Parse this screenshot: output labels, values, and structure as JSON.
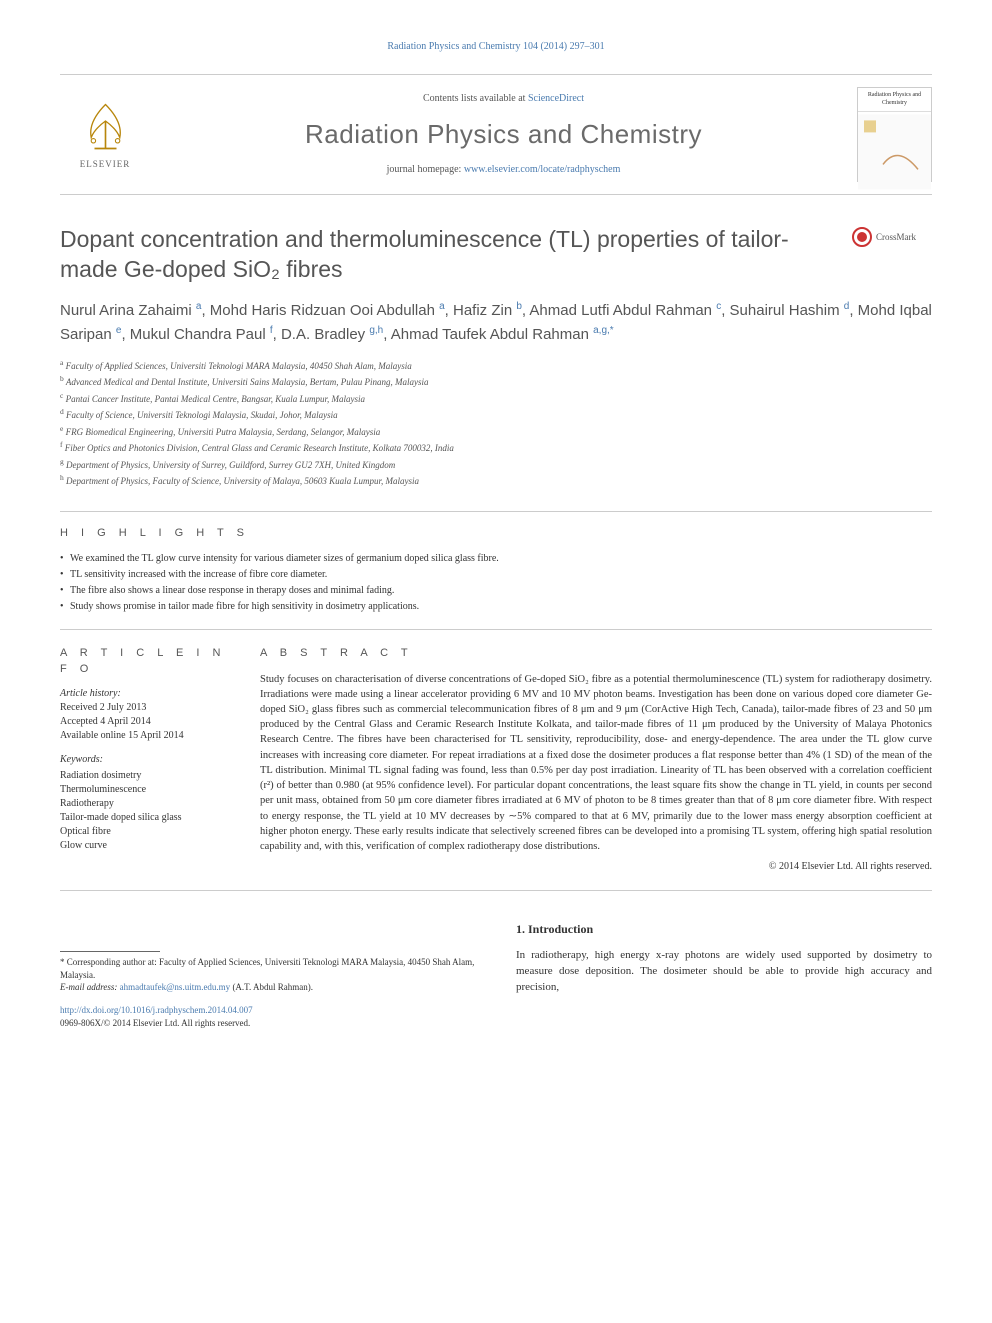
{
  "header": {
    "journal_link": "Radiation Physics and Chemistry 104 (2014) 297–301",
    "contents_prefix": "Contents lists available at ",
    "contents_link": "ScienceDirect",
    "journal_title": "Radiation Physics and Chemistry",
    "homepage_prefix": "journal homepage: ",
    "homepage_link": "www.elsevier.com/locate/radphyschem",
    "elsevier_label": "ELSEVIER",
    "cover_label": "Radiation Physics and Chemistry"
  },
  "crossmark": {
    "label": "CrossMark"
  },
  "article": {
    "title": "Dopant concentration and thermoluminescence (TL) properties of tailor-made Ge-doped SiO₂ fibres",
    "authors_html": "Nurul Arina Zahaimi <sup>a</sup>, Mohd Haris Ridzuan Ooi Abdullah <sup>a</sup>, Hafiz Zin <sup>b</sup>, Ahmad Lutfi Abdul Rahman <sup>c</sup>, Suhairul Hashim <sup>d</sup>, Mohd Iqbal Saripan <sup>e</sup>, Mukul Chandra Paul <sup>f</sup>, D.A. Bradley <sup>g,h</sup>, Ahmad Taufek Abdul Rahman <sup>a,g,*</sup>",
    "affiliations": [
      {
        "sup": "a",
        "text": "Faculty of Applied Sciences, Universiti Teknologi MARA Malaysia, 40450 Shah Alam, Malaysia"
      },
      {
        "sup": "b",
        "text": "Advanced Medical and Dental Institute, Universiti Sains Malaysia, Bertam, Pulau Pinang, Malaysia"
      },
      {
        "sup": "c",
        "text": "Pantai Cancer Institute, Pantai Medical Centre, Bangsar, Kuala Lumpur, Malaysia"
      },
      {
        "sup": "d",
        "text": "Faculty of Science, Universiti Teknologi Malaysia, Skudai, Johor, Malaysia"
      },
      {
        "sup": "e",
        "text": "FRG Biomedical Engineering, Universiti Putra Malaysia, Serdang, Selangor, Malaysia"
      },
      {
        "sup": "f",
        "text": "Fiber Optics and Photonics Division, Central Glass and Ceramic Research Institute, Kolkata 700032, India"
      },
      {
        "sup": "g",
        "text": "Department of Physics, University of Surrey, Guildford, Surrey GU2 7XH, United Kingdom"
      },
      {
        "sup": "h",
        "text": "Department of Physics, Faculty of Science, University of Malaya, 50603 Kuala Lumpur, Malaysia"
      }
    ]
  },
  "highlights": {
    "heading": "H I G H L I G H T S",
    "items": [
      "We examined the TL glow curve intensity for various diameter sizes of germanium doped silica glass fibre.",
      "TL sensitivity increased with the increase of fibre core diameter.",
      "The fibre also shows a linear dose response in therapy doses and minimal fading.",
      "Study shows promise in tailor made fibre for high sensitivity in dosimetry applications."
    ]
  },
  "article_info": {
    "heading": "A R T I C L E  I N F O",
    "history_label": "Article history:",
    "history": [
      "Received 2 July 2013",
      "Accepted 4 April 2014",
      "Available online 15 April 2014"
    ],
    "keywords_label": "Keywords:",
    "keywords": [
      "Radiation dosimetry",
      "Thermoluminescence",
      "Radiotherapy",
      "Tailor-made doped silica glass",
      "Optical fibre",
      "Glow curve"
    ]
  },
  "abstract": {
    "heading": "A B S T R A C T",
    "text": "Study focuses on characterisation of diverse concentrations of Ge-doped SiO₂ fibre as a potential thermoluminescence (TL) system for radiotherapy dosimetry. Irradiations were made using a linear accelerator providing 6 MV and 10 MV photon beams. Investigation has been done on various doped core diameter Ge-doped SiO₂ glass fibres such as commercial telecommunication fibres of 8 μm and 9 μm (CorActive High Tech, Canada), tailor-made fibres of 23 and 50 μm produced by the Central Glass and Ceramic Research Institute Kolkata, and tailor-made fibres of 11 μm produced by the University of Malaya Photonics Research Centre. The fibres have been characterised for TL sensitivity, reproducibility, dose- and energy-dependence. The area under the TL glow curve increases with increasing core diameter. For repeat irradiations at a fixed dose the dosimeter produces a flat response better than 4% (1 SD) of the mean of the TL distribution. Minimal TL signal fading was found, less than 0.5% per day post irradiation. Linearity of TL has been observed with a correlation coefficient (r²) of better than 0.980 (at 95% confidence level). For particular dopant concentrations, the least square fits show the change in TL yield, in counts per second per unit mass, obtained from 50 μm core diameter fibres irradiated at 6 MV of photon to be 8 times greater than that of 8 μm core diameter fibre. With respect to energy response, the TL yield at 10 MV decreases by ∼5% compared to that at 6 MV, primarily due to the lower mass energy absorption coefficient at higher photon energy. These early results indicate that selectively screened fibres can be developed into a promising TL system, offering high spatial resolution capability and, with this, verification of complex radiotherapy dose distributions.",
    "copyright": "© 2014 Elsevier Ltd. All rights reserved."
  },
  "intro": {
    "heading": "1.  Introduction",
    "text": "In radiotherapy, high energy x-ray photons are widely used supported by dosimetry to measure dose deposition. The dosimeter should be able to provide high accuracy and precision,"
  },
  "footnote": {
    "corresponding": "* Corresponding author at: Faculty of Applied Sciences, Universiti Teknologi MARA Malaysia, 40450 Shah Alam, Malaysia.",
    "email_label": "E-mail address: ",
    "email": "ahmadtaufek@ns.uitm.edu.my",
    "email_suffix": " (A.T. Abdul Rahman).",
    "doi": "http://dx.doi.org/10.1016/j.radphyschem.2014.04.007",
    "issn": "0969-806X/© 2014 Elsevier Ltd. All rights reserved."
  },
  "colors": {
    "link": "#4a7baf",
    "text": "#333333",
    "heading_gray": "#555555",
    "border": "#cccccc",
    "crossmark_red": "#cc3333"
  }
}
